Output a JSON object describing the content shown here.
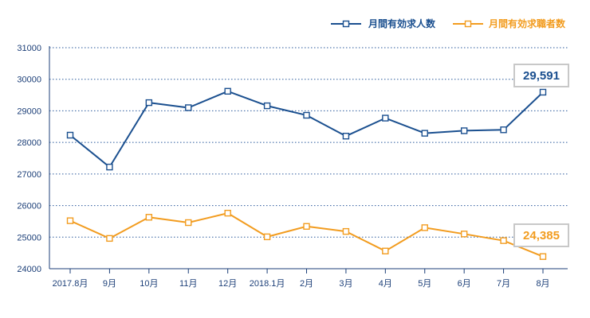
{
  "chart_data": {
    "type": "line",
    "categories": [
      "2017.8月",
      "9月",
      "10月",
      "11月",
      "12月",
      "2018.1月",
      "2月",
      "3月",
      "4月",
      "5月",
      "6月",
      "7月",
      "8月"
    ],
    "series": [
      {
        "name": "月間有効求人数",
        "color": "#1a4f8f",
        "values": [
          28230,
          27220,
          29260,
          29100,
          29620,
          29160,
          28860,
          28200,
          28770,
          28290,
          28370,
          28400,
          29591
        ]
      },
      {
        "name": "月間有効求職者数",
        "color": "#f29c1f",
        "values": [
          25520,
          24960,
          25630,
          25460,
          25760,
          25010,
          25340,
          25180,
          24560,
          25300,
          25100,
          24890,
          24385
        ]
      }
    ],
    "ylim": [
      24000,
      31000
    ],
    "yticks": [
      24000,
      25000,
      26000,
      27000,
      28000,
      29000,
      30000,
      31000
    ],
    "grid": "horizontal-dotted",
    "legend_position": "top-right",
    "callouts": [
      {
        "series": 0,
        "text": "29,591"
      },
      {
        "series": 1,
        "text": "24,385"
      }
    ]
  }
}
